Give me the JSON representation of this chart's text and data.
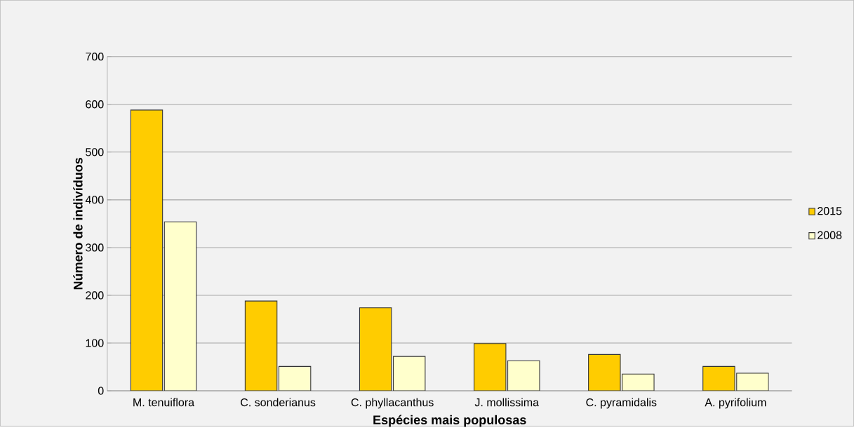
{
  "chart_data": {
    "type": "bar",
    "xlabel": "Espécies mais populosas",
    "ylabel": "Número de indivíduos",
    "categories": [
      "M. tenuiflora",
      "C. sonderianus",
      "C. phyllacanthus",
      "J. mollissima",
      "C. pyramidalis",
      "A. pyrifolium"
    ],
    "series": [
      {
        "name": "2015",
        "color": "#ffcc00",
        "values": [
          588,
          188,
          174,
          99,
          76,
          51
        ]
      },
      {
        "name": "2008",
        "color": "#ffffcc",
        "values": [
          354,
          51,
          72,
          63,
          35,
          37
        ]
      }
    ],
    "ylim": [
      0,
      700
    ],
    "yticks": [
      0,
      100,
      200,
      300,
      400,
      500,
      600,
      700
    ],
    "grid": "y",
    "legend": "right"
  }
}
